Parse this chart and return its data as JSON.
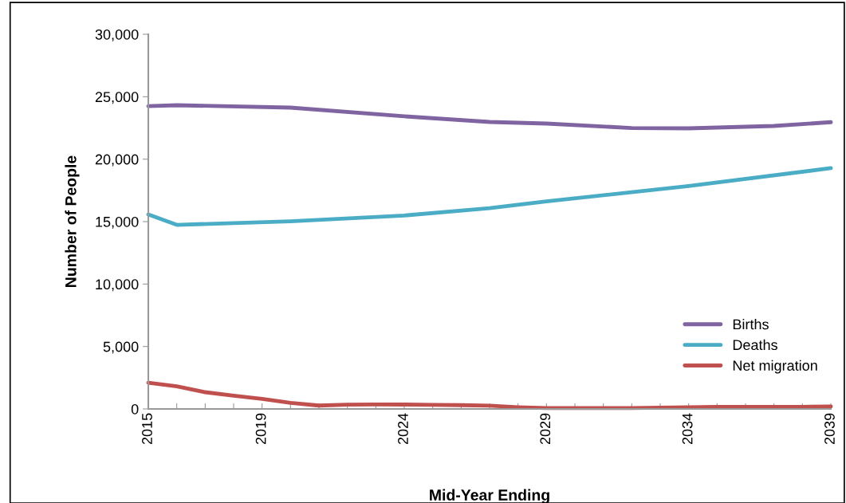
{
  "chart_data": {
    "type": "line",
    "xlabel": "Mid-Year Ending",
    "ylabel": "Number of People",
    "xlim": [
      2015,
      2039
    ],
    "xticks": [
      2015,
      {
        "value": 2016,
        "label": null
      },
      {
        "value": 2017,
        "label": null
      },
      {
        "value": 2018,
        "label": null
      },
      2019,
      {
        "value": 2020,
        "label": null
      },
      {
        "value": 2021,
        "label": null
      },
      {
        "value": 2022,
        "label": null
      },
      {
        "value": 2023,
        "label": null
      },
      2024,
      {
        "value": 2025,
        "label": null
      },
      {
        "value": 2026,
        "label": null
      },
      {
        "value": 2027,
        "label": null
      },
      {
        "value": 2028,
        "label": null
      },
      2029,
      {
        "value": 2030,
        "label": null
      },
      {
        "value": 2031,
        "label": null
      },
      {
        "value": 2032,
        "label": null
      },
      {
        "value": 2033,
        "label": null
      },
      2034,
      {
        "value": 2035,
        "label": null
      },
      {
        "value": 2036,
        "label": null
      },
      {
        "value": 2037,
        "label": null
      },
      {
        "value": 2038,
        "label": null
      },
      2039
    ],
    "ylim": [
      0,
      30000
    ],
    "yticks": [
      {
        "value": 0,
        "label": "0"
      },
      {
        "value": 5000,
        "label": "5,000"
      },
      {
        "value": 10000,
        "label": "10,000"
      },
      {
        "value": 15000,
        "label": "15,000"
      },
      {
        "value": 20000,
        "label": "20,000"
      },
      {
        "value": 25000,
        "label": "25,000"
      },
      {
        "value": 30000,
        "label": "30,000"
      }
    ],
    "grid": false,
    "legend": "bottom right",
    "marker": "none",
    "line_style": "solid",
    "series": [
      {
        "name": "Births",
        "color": "#8064a2",
        "x": [
          2015,
          2016,
          2020,
          2024,
          2027,
          2029,
          2032,
          2034,
          2037,
          2039
        ],
        "values": [
          24250,
          24320,
          24130,
          23430,
          22980,
          22850,
          22490,
          22470,
          22660,
          22960
        ]
      },
      {
        "name": "Deaths",
        "color": "#4bacc6",
        "x": [
          2015,
          2016,
          2020,
          2024,
          2027,
          2029,
          2034,
          2039
        ],
        "values": [
          15570,
          14740,
          15020,
          15490,
          16080,
          16620,
          17850,
          19280
        ]
      },
      {
        "name": "Net migration",
        "color": "#c0504d",
        "x": [
          2015,
          2016,
          2017,
          2018,
          2019,
          2020,
          2021,
          2022,
          2023,
          2024,
          2025,
          2026,
          2027,
          2028,
          2029,
          2030,
          2031,
          2032,
          2033,
          2034,
          2035,
          2036,
          2037,
          2038,
          2039
        ],
        "values": [
          2100,
          1810,
          1340,
          1060,
          810,
          490,
          270,
          340,
          360,
          350,
          330,
          300,
          260,
          140,
          70,
          70,
          70,
          70,
          100,
          140,
          170,
          170,
          170,
          170,
          200
        ]
      }
    ]
  }
}
